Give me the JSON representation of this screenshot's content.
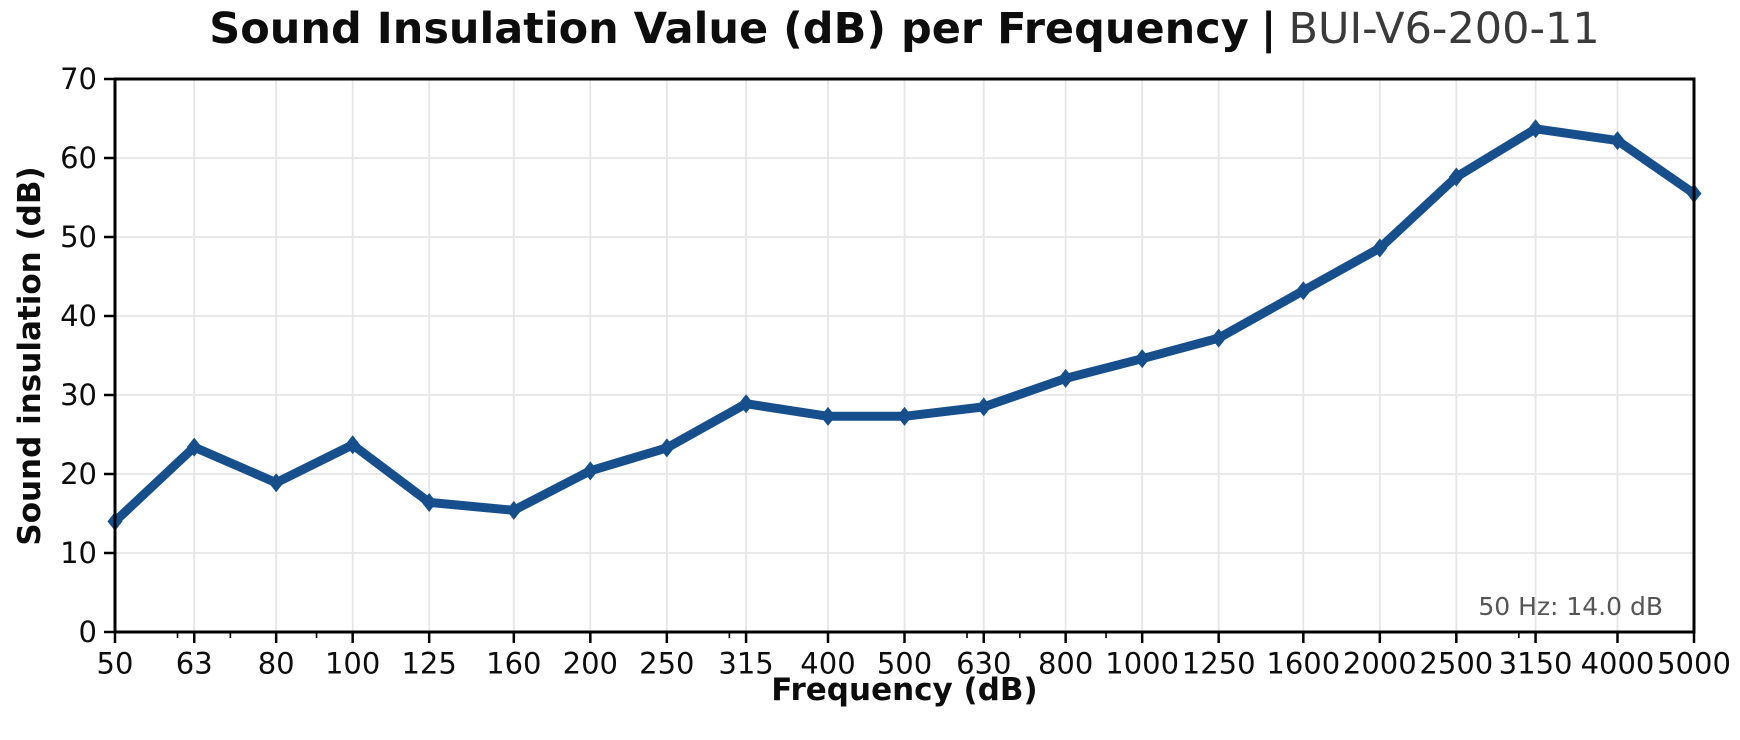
{
  "title": {
    "main": "Sound Insulation Value (dB) per Frequency",
    "separator": "|",
    "code": "BUI-V6-200-11"
  },
  "chart_data": {
    "type": "line",
    "title": "Sound Insulation Value (dB) per Frequency | BUI-V6-200-11",
    "xlabel": "Frequency (dB)",
    "ylabel": "Sound insulation (dB)",
    "x_scale": "log",
    "x_categories": [
      "50",
      "63",
      "80",
      "100",
      "125",
      "160",
      "200",
      "250",
      "315",
      "400",
      "500",
      "630",
      "800",
      "1000",
      "1250",
      "1600",
      "2000",
      "2500",
      "3150",
      "4000",
      "5000"
    ],
    "x_values": [
      50,
      63,
      80,
      100,
      125,
      160,
      200,
      250,
      315,
      400,
      500,
      630,
      800,
      1000,
      1250,
      1600,
      2000,
      2500,
      3150,
      4000,
      5000
    ],
    "series": [
      {
        "name": "Sound insulation",
        "values": [
          14.0,
          23.4,
          18.9,
          23.7,
          16.4,
          15.4,
          20.4,
          23.3,
          28.9,
          27.3,
          27.3,
          28.5,
          32.1,
          34.6,
          37.2,
          43.2,
          48.6,
          57.6,
          63.7,
          62.2,
          55.5
        ]
      }
    ],
    "ylim": [
      0,
      70
    ],
    "yticks": [
      0,
      10,
      20,
      30,
      40,
      50,
      60,
      70
    ],
    "minor_xticks": [
      60,
      70,
      90,
      300,
      600,
      700,
      900,
      3000
    ],
    "grid": true,
    "legend": "none",
    "annotation": {
      "text": "50 Hz: 14.0 dB",
      "position": "bottom-right"
    },
    "line_color": "#174f8d",
    "grid_color": "#e6e6e6",
    "frame_color": "#000000",
    "tick_label_color": "#0d0d0d",
    "annotation_color": "#555555"
  }
}
